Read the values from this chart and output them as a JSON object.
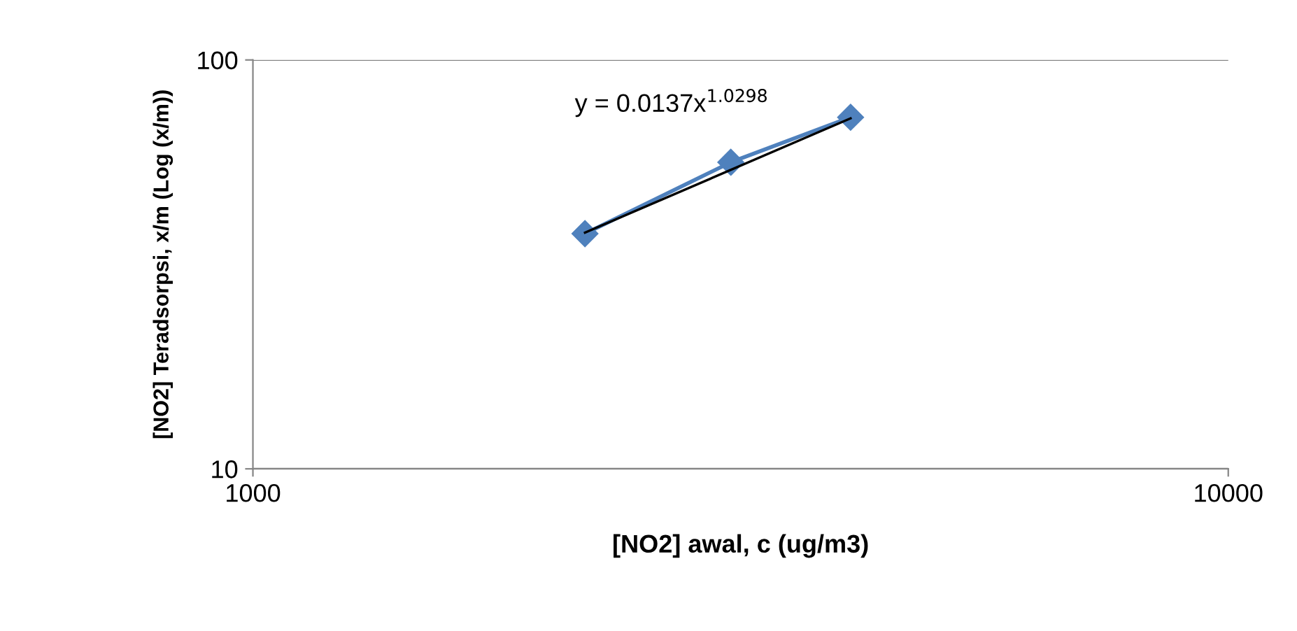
{
  "chart_data": {
    "type": "line",
    "xlabel": "[NO2] awal, c (ug/m3)",
    "ylabel": "[NO2] Teradsorpsi, x/m (Log (x/m))",
    "log": "xy",
    "xlim": [
      1000,
      10000
    ],
    "ylim": [
      10,
      100
    ],
    "xticks": [
      1000,
      10000
    ],
    "yticks": [
      10,
      100
    ],
    "grid": "y",
    "marker": "diamond",
    "series": [
      {
        "color": "#4f81bd",
        "x": [
          2190,
          3090,
          4100
        ],
        "values": [
          37.6,
          56.2,
          72.4
        ]
      },
      {
        "type": "line",
        "color": "#000000",
        "x": [
          2190,
          4100
        ],
        "values": [
          37.8,
          72.0
        ],
        "marker": "none"
      }
    ],
    "annotations": [
      "y = 0.0137x$^{1.0298}$"
    ]
  }
}
